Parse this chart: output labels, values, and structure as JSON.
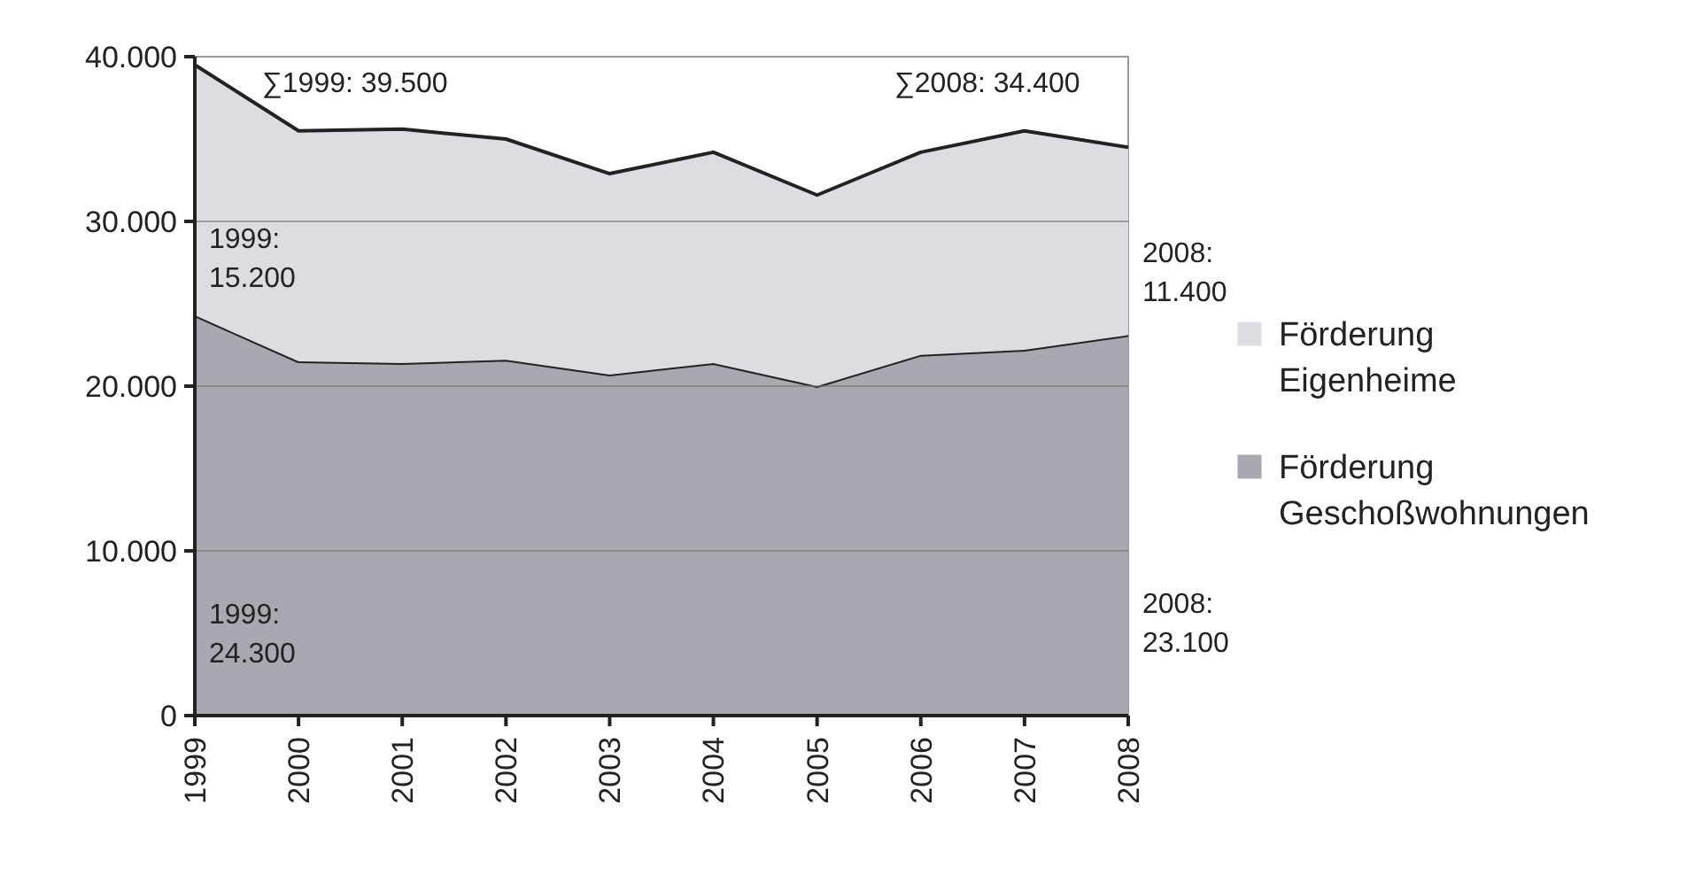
{
  "chart_data": {
    "type": "area",
    "stacked": true,
    "categories": [
      "1999",
      "2000",
      "2001",
      "2002",
      "2003",
      "2004",
      "2005",
      "2006",
      "2007",
      "2008"
    ],
    "series": [
      {
        "name": "Förderung Geschoßwohnungen",
        "color": "#a7a8b0",
        "values": [
          24300,
          21500,
          21400,
          21600,
          20700,
          21400,
          20000,
          21900,
          22200,
          23100
        ]
      },
      {
        "name": "Förderung Eigenheime",
        "color": "#dcdde2",
        "values": [
          15200,
          14000,
          14200,
          13400,
          12200,
          12800,
          11600,
          12300,
          13300,
          11400
        ]
      }
    ],
    "ylim": [
      0,
      40000
    ],
    "yticks": [
      {
        "value": 0,
        "label": "0"
      },
      {
        "value": 10000,
        "label": "10.000"
      },
      {
        "value": 20000,
        "label": "20.000"
      },
      {
        "value": 30000,
        "label": "30.000"
      },
      {
        "value": 40000,
        "label": "40.000"
      }
    ],
    "grid": "y",
    "legend": "right",
    "annotations": [
      "∑1999: 39.500",
      "∑2008: 34.400",
      "2008:\n11.400",
      "1999:\n15.200",
      "1999:\n24.300",
      "2008:\n23.100"
    ]
  }
}
